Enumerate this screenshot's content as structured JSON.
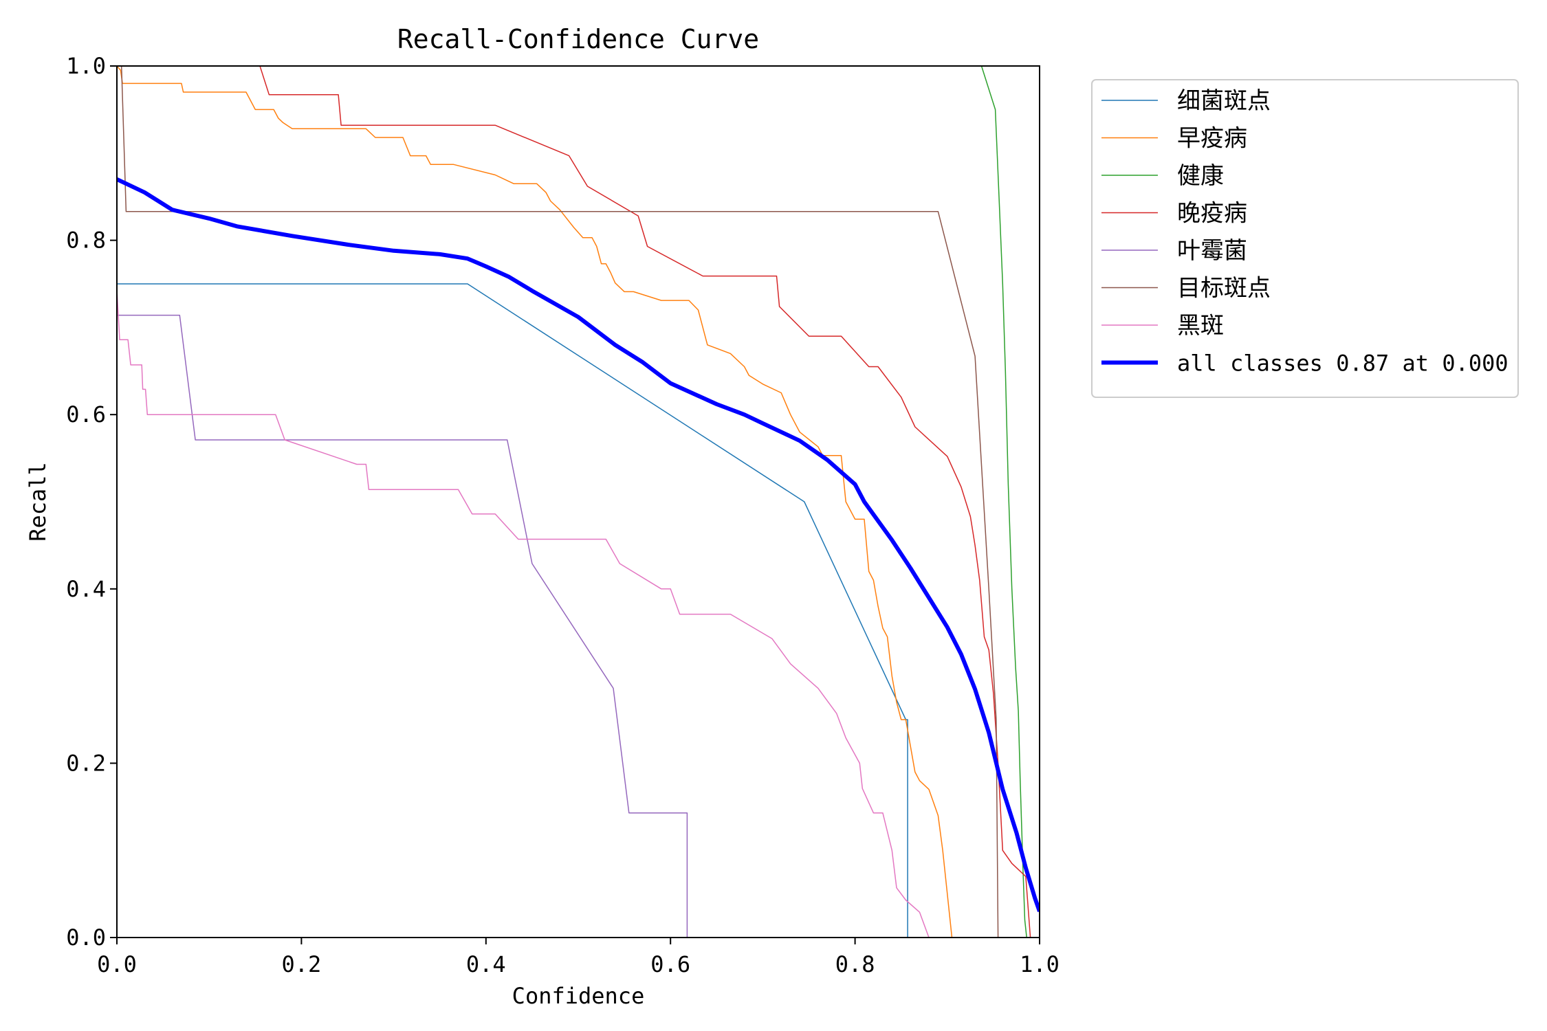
{
  "chart_data": {
    "type": "line",
    "title": "Recall-Confidence Curve",
    "xlabel": "Confidence",
    "ylabel": "Recall",
    "xlim": [
      0,
      1
    ],
    "ylim": [
      0,
      1
    ],
    "xticks": [
      "0.0",
      "0.2",
      "0.4",
      "0.6",
      "0.8",
      "1.0"
    ],
    "yticks": [
      "0.0",
      "0.2",
      "0.4",
      "0.6",
      "0.8",
      "1.0"
    ],
    "grid": false,
    "legend_position": "outside-right-top",
    "series": [
      {
        "name": "细菌斑点",
        "color": "#1f77b4",
        "width": 1.5,
        "points": [
          [
            0,
            0.75
          ],
          [
            0.38,
            0.75
          ],
          [
            0.745,
            0.5
          ],
          [
            0.855,
            0.25
          ],
          [
            0.857,
            0.25
          ],
          [
            0.857,
            0
          ],
          [
            1.0,
            0
          ]
        ]
      },
      {
        "name": "早疫病",
        "color": "#ff7f0e",
        "width": 1.5,
        "points": [
          [
            0,
            1.0
          ],
          [
            0.004,
            0.995
          ],
          [
            0.006,
            0.98
          ],
          [
            0.01,
            0.98
          ],
          [
            0.07,
            0.98
          ],
          [
            0.072,
            0.97
          ],
          [
            0.14,
            0.97
          ],
          [
            0.15,
            0.95
          ],
          [
            0.17,
            0.95
          ],
          [
            0.175,
            0.94
          ],
          [
            0.18,
            0.935
          ],
          [
            0.19,
            0.928
          ],
          [
            0.27,
            0.928
          ],
          [
            0.28,
            0.918
          ],
          [
            0.31,
            0.918
          ],
          [
            0.315,
            0.905
          ],
          [
            0.318,
            0.897
          ],
          [
            0.335,
            0.897
          ],
          [
            0.34,
            0.887
          ],
          [
            0.365,
            0.887
          ],
          [
            0.41,
            0.875
          ],
          [
            0.43,
            0.865
          ],
          [
            0.455,
            0.865
          ],
          [
            0.465,
            0.855
          ],
          [
            0.47,
            0.845
          ],
          [
            0.48,
            0.835
          ],
          [
            0.495,
            0.815
          ],
          [
            0.505,
            0.803
          ],
          [
            0.515,
            0.803
          ],
          [
            0.52,
            0.793
          ],
          [
            0.525,
            0.773
          ],
          [
            0.53,
            0.773
          ],
          [
            0.535,
            0.763
          ],
          [
            0.54,
            0.751
          ],
          [
            0.55,
            0.741
          ],
          [
            0.56,
            0.741
          ],
          [
            0.59,
            0.731
          ],
          [
            0.62,
            0.731
          ],
          [
            0.63,
            0.72
          ],
          [
            0.635,
            0.7
          ],
          [
            0.64,
            0.68
          ],
          [
            0.665,
            0.67
          ],
          [
            0.68,
            0.655
          ],
          [
            0.685,
            0.645
          ],
          [
            0.7,
            0.635
          ],
          [
            0.72,
            0.625
          ],
          [
            0.73,
            0.6
          ],
          [
            0.74,
            0.58
          ],
          [
            0.76,
            0.563
          ],
          [
            0.765,
            0.553
          ],
          [
            0.785,
            0.553
          ],
          [
            0.79,
            0.5
          ],
          [
            0.8,
            0.48
          ],
          [
            0.81,
            0.48
          ],
          [
            0.815,
            0.42
          ],
          [
            0.82,
            0.41
          ],
          [
            0.825,
            0.38
          ],
          [
            0.83,
            0.355
          ],
          [
            0.835,
            0.345
          ],
          [
            0.84,
            0.3
          ],
          [
            0.845,
            0.27
          ],
          [
            0.85,
            0.25
          ],
          [
            0.855,
            0.25
          ],
          [
            0.86,
            0.22
          ],
          [
            0.865,
            0.19
          ],
          [
            0.87,
            0.18
          ],
          [
            0.88,
            0.17
          ],
          [
            0.89,
            0.14
          ],
          [
            0.895,
            0.1
          ],
          [
            0.9,
            0.05
          ],
          [
            0.905,
            0
          ],
          [
            1.0,
            0
          ]
        ]
      },
      {
        "name": "健康",
        "color": "#2ca02c",
        "width": 1.5,
        "points": [
          [
            0.937,
            1.0
          ],
          [
            0.952,
            0.95
          ],
          [
            0.956,
            0.85
          ],
          [
            0.96,
            0.75
          ],
          [
            0.963,
            0.65
          ],
          [
            0.966,
            0.52
          ],
          [
            0.97,
            0.4
          ],
          [
            0.974,
            0.31
          ],
          [
            0.977,
            0.26
          ],
          [
            0.979,
            0.18
          ],
          [
            0.982,
            0.08
          ],
          [
            0.984,
            0.02
          ],
          [
            0.986,
            0
          ],
          [
            1.0,
            0
          ]
        ]
      },
      {
        "name": "晚疫病",
        "color": "#d62728",
        "width": 1.5,
        "points": [
          [
            0.155,
            1.0
          ],
          [
            0.165,
            0.967
          ],
          [
            0.24,
            0.967
          ],
          [
            0.243,
            0.932
          ],
          [
            0.41,
            0.932
          ],
          [
            0.49,
            0.897
          ],
          [
            0.51,
            0.862
          ],
          [
            0.565,
            0.828
          ],
          [
            0.575,
            0.793
          ],
          [
            0.635,
            0.759
          ],
          [
            0.715,
            0.759
          ],
          [
            0.718,
            0.724
          ],
          [
            0.75,
            0.69
          ],
          [
            0.785,
            0.69
          ],
          [
            0.815,
            0.655
          ],
          [
            0.825,
            0.655
          ],
          [
            0.85,
            0.62
          ],
          [
            0.865,
            0.586
          ],
          [
            0.9,
            0.552
          ],
          [
            0.915,
            0.517
          ],
          [
            0.925,
            0.483
          ],
          [
            0.93,
            0.45
          ],
          [
            0.935,
            0.41
          ],
          [
            0.94,
            0.345
          ],
          [
            0.945,
            0.33
          ],
          [
            0.95,
            0.28
          ],
          [
            0.955,
            0.2
          ],
          [
            0.96,
            0.1
          ],
          [
            0.97,
            0.085
          ],
          [
            0.985,
            0.07
          ],
          [
            0.99,
            0
          ],
          [
            1.0,
            0
          ]
        ]
      },
      {
        "name": "叶霉菌",
        "color": "#9467bd",
        "width": 1.5,
        "points": [
          [
            0,
            0.714
          ],
          [
            0.068,
            0.714
          ],
          [
            0.085,
            0.571
          ],
          [
            0.423,
            0.571
          ],
          [
            0.45,
            0.429
          ],
          [
            0.538,
            0.286
          ],
          [
            0.555,
            0.143
          ],
          [
            0.618,
            0.143
          ],
          [
            0.618,
            0
          ],
          [
            1.0,
            0
          ]
        ]
      },
      {
        "name": "目标斑点",
        "color": "#8c564b",
        "width": 1.5,
        "points": [
          [
            0.005,
            1.0
          ],
          [
            0.01,
            0.833
          ],
          [
            0.89,
            0.833
          ],
          [
            0.93,
            0.667
          ],
          [
            0.945,
            0.4
          ],
          [
            0.953,
            0.25
          ],
          [
            0.955,
            0
          ],
          [
            1.0,
            0
          ]
        ]
      },
      {
        "name": "黑斑",
        "color": "#e377c2",
        "width": 1.5,
        "points": [
          [
            0,
            0.743
          ],
          [
            0.003,
            0.686
          ],
          [
            0.012,
            0.686
          ],
          [
            0.015,
            0.657
          ],
          [
            0.027,
            0.657
          ],
          [
            0.028,
            0.629
          ],
          [
            0.031,
            0.629
          ],
          [
            0.033,
            0.6
          ],
          [
            0.172,
            0.6
          ],
          [
            0.182,
            0.571
          ],
          [
            0.26,
            0.543
          ],
          [
            0.27,
            0.543
          ],
          [
            0.273,
            0.514
          ],
          [
            0.37,
            0.514
          ],
          [
            0.385,
            0.486
          ],
          [
            0.41,
            0.486
          ],
          [
            0.435,
            0.457
          ],
          [
            0.53,
            0.457
          ],
          [
            0.545,
            0.429
          ],
          [
            0.59,
            0.4
          ],
          [
            0.6,
            0.4
          ],
          [
            0.61,
            0.371
          ],
          [
            0.665,
            0.371
          ],
          [
            0.71,
            0.343
          ],
          [
            0.73,
            0.314
          ],
          [
            0.76,
            0.286
          ],
          [
            0.78,
            0.257
          ],
          [
            0.79,
            0.229
          ],
          [
            0.805,
            0.2
          ],
          [
            0.808,
            0.171
          ],
          [
            0.82,
            0.143
          ],
          [
            0.83,
            0.143
          ],
          [
            0.84,
            0.1
          ],
          [
            0.845,
            0.057
          ],
          [
            0.855,
            0.043
          ],
          [
            0.87,
            0.029
          ],
          [
            0.88,
            0
          ],
          [
            1.0,
            0
          ]
        ]
      },
      {
        "name": "all classes 0.87 at 0.000",
        "color": "#0000ff",
        "width": 6,
        "points": [
          [
            0,
            0.87
          ],
          [
            0.03,
            0.855
          ],
          [
            0.06,
            0.835
          ],
          [
            0.1,
            0.825
          ],
          [
            0.13,
            0.816
          ],
          [
            0.19,
            0.805
          ],
          [
            0.25,
            0.795
          ],
          [
            0.3,
            0.788
          ],
          [
            0.35,
            0.784
          ],
          [
            0.38,
            0.779
          ],
          [
            0.4,
            0.77
          ],
          [
            0.425,
            0.758
          ],
          [
            0.45,
            0.742
          ],
          [
            0.5,
            0.712
          ],
          [
            0.54,
            0.68
          ],
          [
            0.57,
            0.66
          ],
          [
            0.6,
            0.636
          ],
          [
            0.65,
            0.612
          ],
          [
            0.68,
            0.6
          ],
          [
            0.7,
            0.59
          ],
          [
            0.74,
            0.57
          ],
          [
            0.77,
            0.548
          ],
          [
            0.8,
            0.52
          ],
          [
            0.81,
            0.5
          ],
          [
            0.84,
            0.456
          ],
          [
            0.86,
            0.424
          ],
          [
            0.88,
            0.39
          ],
          [
            0.9,
            0.356
          ],
          [
            0.915,
            0.325
          ],
          [
            0.93,
            0.285
          ],
          [
            0.945,
            0.235
          ],
          [
            0.96,
            0.17
          ],
          [
            0.975,
            0.12
          ],
          [
            0.985,
            0.08
          ],
          [
            0.995,
            0.045
          ],
          [
            1.0,
            0.03
          ]
        ]
      }
    ]
  }
}
